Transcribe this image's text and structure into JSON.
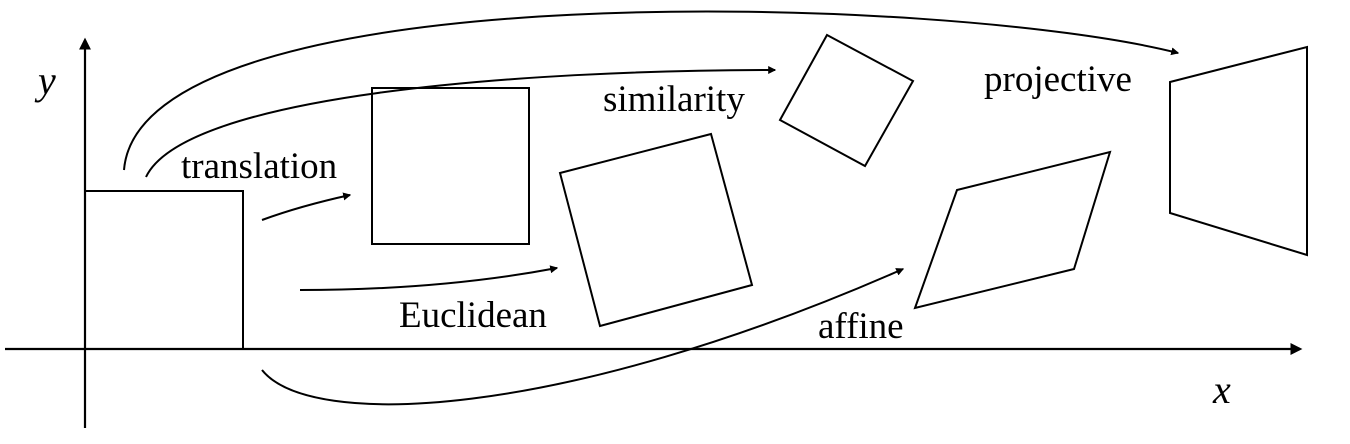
{
  "axes": {
    "x_label": "x",
    "y_label": "y"
  },
  "transforms": [
    {
      "id": "translation",
      "label": "translation"
    },
    {
      "id": "euclidean",
      "label": "Euclidean"
    },
    {
      "id": "similarity",
      "label": "similarity"
    },
    {
      "id": "affine",
      "label": "affine"
    },
    {
      "id": "projective",
      "label": "projective"
    }
  ],
  "colors": {
    "ink": "#000000",
    "background": "#ffffff"
  }
}
